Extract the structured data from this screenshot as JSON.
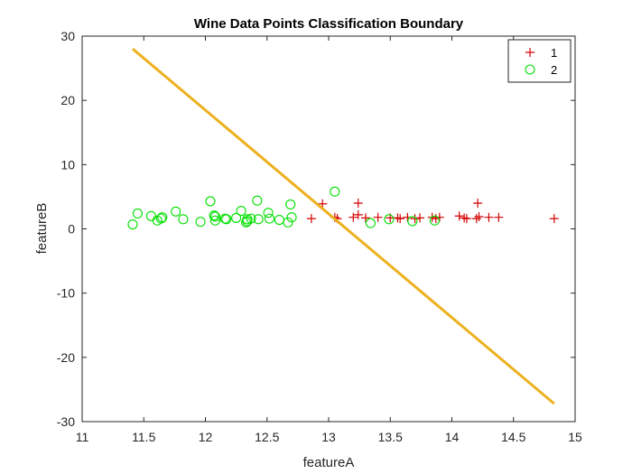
{
  "chart_data": {
    "type": "scatter",
    "title": "Wine Data Points Classification Boundary",
    "xlabel": "featureA",
    "ylabel": "featureB",
    "xlim": [
      11,
      15
    ],
    "ylim": [
      -30,
      30
    ],
    "xticks": [
      11,
      11.5,
      12,
      12.5,
      13,
      13.5,
      14,
      14.5,
      15
    ],
    "yticks": [
      -30,
      -20,
      -10,
      0,
      10,
      20,
      30
    ],
    "xtick_labels": [
      "11",
      "11.5",
      "12",
      "12.5",
      "13",
      "13.5",
      "14",
      "14.5",
      "15"
    ],
    "ytick_labels": [
      "-30",
      "-20",
      "-10",
      "0",
      "10",
      "20",
      "30"
    ],
    "grid": false,
    "legend_position": "top-right",
    "series": [
      {
        "name": "1",
        "marker": "plus",
        "color": "#d40000",
        "points": [
          [
            12.86,
            1.6
          ],
          [
            12.95,
            3.9
          ],
          [
            13.05,
            1.8
          ],
          [
            13.07,
            1.6
          ],
          [
            13.2,
            1.8
          ],
          [
            13.24,
            2.2
          ],
          [
            13.24,
            4.0
          ],
          [
            13.3,
            1.7
          ],
          [
            13.4,
            1.8
          ],
          [
            13.5,
            1.7
          ],
          [
            13.56,
            1.7
          ],
          [
            13.58,
            1.6
          ],
          [
            13.64,
            1.8
          ],
          [
            13.7,
            1.6
          ],
          [
            13.74,
            1.7
          ],
          [
            13.84,
            1.8
          ],
          [
            13.87,
            1.6
          ],
          [
            13.9,
            1.8
          ],
          [
            14.06,
            2.0
          ],
          [
            14.1,
            1.7
          ],
          [
            14.12,
            1.6
          ],
          [
            14.2,
            1.6
          ],
          [
            14.21,
            4.0
          ],
          [
            14.22,
            1.9
          ],
          [
            14.3,
            1.8
          ],
          [
            14.38,
            1.8
          ],
          [
            14.83,
            1.6
          ]
        ]
      },
      {
        "name": "2",
        "marker": "circle",
        "color": "#00e000",
        "points": [
          [
            11.41,
            0.7
          ],
          [
            11.45,
            2.4
          ],
          [
            11.56,
            2.0
          ],
          [
            11.61,
            1.3
          ],
          [
            11.64,
            1.6
          ],
          [
            11.65,
            1.8
          ],
          [
            11.76,
            2.7
          ],
          [
            11.82,
            1.5
          ],
          [
            11.96,
            1.1
          ],
          [
            12.04,
            4.3
          ],
          [
            12.07,
            2.1
          ],
          [
            12.08,
            1.3
          ],
          [
            12.08,
            1.9
          ],
          [
            12.16,
            1.6
          ],
          [
            12.17,
            1.5
          ],
          [
            12.25,
            1.7
          ],
          [
            12.29,
            2.8
          ],
          [
            12.33,
            1.0
          ],
          [
            12.34,
            1.5
          ],
          [
            12.34,
            1.2
          ],
          [
            12.37,
            1.6
          ],
          [
            12.42,
            4.4
          ],
          [
            12.43,
            1.5
          ],
          [
            12.51,
            2.5
          ],
          [
            12.52,
            1.6
          ],
          [
            12.6,
            1.4
          ],
          [
            12.67,
            1.0
          ],
          [
            12.69,
            3.8
          ],
          [
            12.7,
            1.8
          ],
          [
            13.05,
            5.8
          ],
          [
            13.34,
            0.9
          ],
          [
            13.49,
            1.5
          ],
          [
            13.68,
            1.2
          ],
          [
            13.86,
            1.3
          ]
        ]
      },
      {
        "name": "",
        "type": "line",
        "color": "#edb120",
        "points": [
          [
            11.41,
            28.0
          ],
          [
            14.83,
            -27.2
          ]
        ]
      }
    ]
  }
}
